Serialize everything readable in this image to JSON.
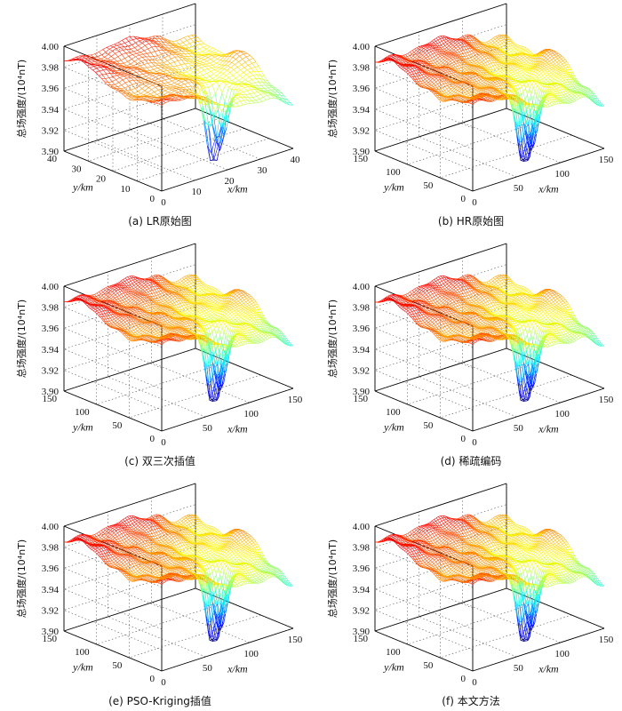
{
  "figure": {
    "panels": [
      {
        "id": "a",
        "caption": "(a) LR原始图",
        "xlabel": "x/km",
        "ylabel": "y/km",
        "zlabel": "总场强度/(10⁴nT)",
        "xticks": [
          "0",
          "10",
          "20",
          "30",
          "40"
        ],
        "yticks": [
          "0",
          "10",
          "20",
          "30",
          "40"
        ],
        "zticks": [
          "3.90",
          "3.92",
          "3.94",
          "3.96",
          "3.98",
          "4.00"
        ]
      },
      {
        "id": "b",
        "caption": "(b) HR原始图",
        "xlabel": "x/km",
        "ylabel": "y/km",
        "zlabel": "总场强度/(10⁴nT)",
        "xticks": [
          "0",
          "50",
          "100",
          "150"
        ],
        "yticks": [
          "0",
          "50",
          "100",
          "150"
        ],
        "zticks": [
          "3.90",
          "3.92",
          "3.94",
          "3.96",
          "3.98",
          "4.00"
        ]
      },
      {
        "id": "c",
        "caption": "(c) 双三次插值",
        "xlabel": "x/km",
        "ylabel": "y/km",
        "zlabel": "总场强度/(10⁴nT)",
        "xticks": [
          "0",
          "50",
          "100",
          "150"
        ],
        "yticks": [
          "0",
          "50",
          "100",
          "150"
        ],
        "zticks": [
          "3.90",
          "3.92",
          "3.94",
          "3.96",
          "3.98",
          "4.00"
        ]
      },
      {
        "id": "d",
        "caption": "(d) 稀疏编码",
        "xlabel": "x/km",
        "ylabel": "y/km",
        "zlabel": "总场强度/(10⁴nT)",
        "xticks": [
          "0",
          "50",
          "100",
          "150"
        ],
        "yticks": [
          "0",
          "50",
          "100",
          "150"
        ],
        "zticks": [
          "3.90",
          "3.92",
          "3.94",
          "3.96",
          "3.98",
          "4.00"
        ]
      },
      {
        "id": "e",
        "caption": "(e) PSO-Kriging插值",
        "xlabel": "x/km",
        "ylabel": "y/km",
        "zlabel": "总场强度/(10⁴nT)",
        "xticks": [
          "0",
          "50",
          "100",
          "150"
        ],
        "yticks": [
          "0",
          "50",
          "100",
          "150"
        ],
        "zticks": [
          "3.90",
          "3.92",
          "3.94",
          "3.96",
          "3.98",
          "4.00"
        ]
      },
      {
        "id": "f",
        "caption": "(f) 本文方法",
        "xlabel": "x/km",
        "ylabel": "y/km",
        "zlabel": "总场强度/(10⁴nT)",
        "xticks": [
          "0",
          "50",
          "100",
          "150"
        ],
        "yticks": [
          "0",
          "50",
          "100",
          "150"
        ],
        "zticks": [
          "3.90",
          "3.92",
          "3.94",
          "3.96",
          "3.98",
          "4.00"
        ]
      }
    ]
  },
  "chart_data": [
    {
      "type": "surface",
      "panel": "a",
      "grid_size": [
        40,
        40
      ],
      "x_range": [
        0,
        40
      ],
      "y_range": [
        0,
        40
      ],
      "z_range": [
        3.9,
        4.0
      ],
      "z_max_approx": 3.985,
      "z_min_approx": 3.905,
      "colormap": "jet",
      "render": "mesh"
    },
    {
      "type": "surface",
      "panel": "b",
      "grid_size": [
        160,
        160
      ],
      "x_range": [
        0,
        160
      ],
      "y_range": [
        0,
        160
      ],
      "z_range": [
        3.9,
        4.0
      ],
      "z_max_approx": 3.99,
      "z_min_approx": 3.905,
      "colormap": "jet",
      "render": "mesh"
    },
    {
      "type": "surface",
      "panel": "c",
      "grid_size": [
        160,
        160
      ],
      "x_range": [
        0,
        160
      ],
      "y_range": [
        0,
        160
      ],
      "z_range": [
        3.9,
        4.0
      ],
      "z_max_approx": 3.99,
      "z_min_approx": 3.905,
      "colormap": "jet",
      "render": "mesh"
    },
    {
      "type": "surface",
      "panel": "d",
      "grid_size": [
        160,
        160
      ],
      "x_range": [
        0,
        160
      ],
      "y_range": [
        0,
        160
      ],
      "z_range": [
        3.9,
        4.0
      ],
      "z_max_approx": 3.99,
      "z_min_approx": 3.905,
      "colormap": "jet",
      "render": "mesh"
    },
    {
      "type": "surface",
      "panel": "e",
      "grid_size": [
        160,
        160
      ],
      "x_range": [
        0,
        160
      ],
      "y_range": [
        0,
        160
      ],
      "z_range": [
        3.9,
        4.0
      ],
      "z_max_approx": 3.99,
      "z_min_approx": 3.905,
      "colormap": "jet",
      "render": "mesh"
    },
    {
      "type": "surface",
      "panel": "f",
      "grid_size": [
        160,
        160
      ],
      "x_range": [
        0,
        160
      ],
      "y_range": [
        0,
        160
      ],
      "z_range": [
        3.9,
        4.0
      ],
      "z_max_approx": 3.99,
      "z_min_approx": 3.905,
      "colormap": "jet",
      "render": "mesh"
    }
  ]
}
